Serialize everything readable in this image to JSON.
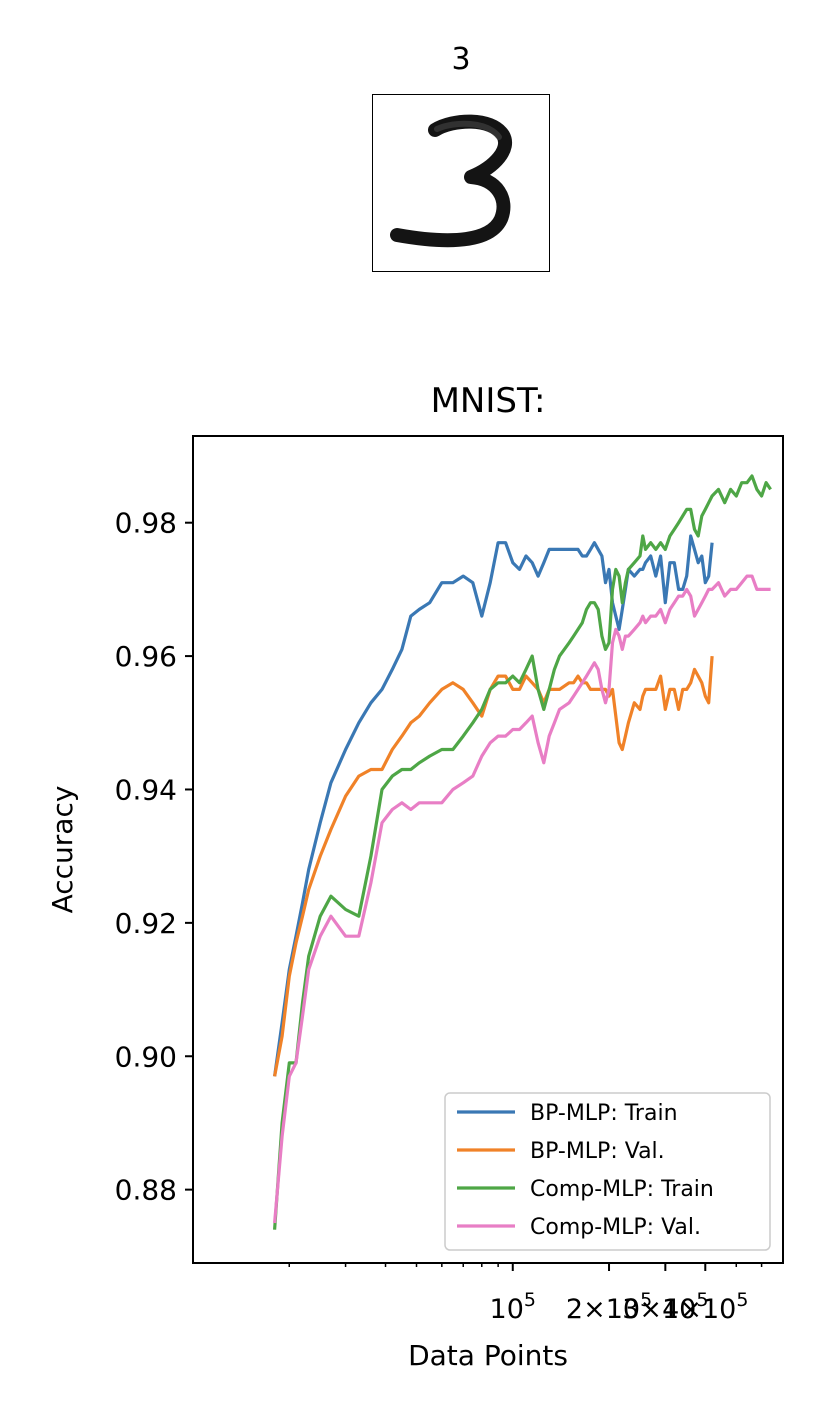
{
  "sample": {
    "label": "3",
    "image": "handwritten-digit-3"
  },
  "colors": {
    "bp_train": "#3a78b4",
    "bp_val": "#f08228",
    "comp_train": "#4ea646",
    "comp_val": "#e87ec5"
  },
  "chart_data": {
    "type": "line",
    "title": "MNIST:",
    "xlabel": "Data Points",
    "ylabel": "Accuracy",
    "xscale": "log",
    "xlim": [
      10000,
      700000
    ],
    "ylim": [
      0.869,
      0.993
    ],
    "yticks": [
      0.88,
      0.9,
      0.92,
      0.94,
      0.96,
      0.98
    ],
    "ytick_labels": [
      "0.88",
      "0.90",
      "0.92",
      "0.94",
      "0.96",
      "0.98"
    ],
    "xticks": [
      100000,
      200000,
      300000,
      400000
    ],
    "xtick_labels": [
      {
        "base": "10",
        "sup": "5"
      },
      {
        "base": "2×10",
        "sup": "5"
      },
      {
        "base": "3×10",
        "sup": "5"
      },
      {
        "base": "4×10",
        "sup": "5"
      }
    ],
    "legend": {
      "location": "lower-right",
      "entries": [
        "BP-MLP: Train",
        "BP-MLP: Val.",
        "Comp-MLP: Train",
        "Comp-MLP: Val."
      ]
    },
    "grid": false,
    "series": [
      {
        "name": "BP-MLP: Train",
        "color_key": "bp_train",
        "x": [
          18000,
          19000,
          20000,
          21000,
          22000,
          23000,
          25000,
          27000,
          30000,
          33000,
          36000,
          39000,
          42000,
          45000,
          48000,
          51000,
          55000,
          60000,
          65000,
          70000,
          75000,
          80000,
          85000,
          90000,
          95000,
          100000,
          105000,
          110000,
          115000,
          120000,
          125000,
          130000,
          135000,
          140000,
          150000,
          155000,
          160000,
          165000,
          170000,
          175000,
          180000,
          185000,
          190000,
          195000,
          200000,
          205000,
          210000,
          215000,
          220000,
          225000,
          230000,
          240000,
          250000,
          255000,
          260000,
          270000,
          280000,
          290000,
          300000,
          310000,
          320000,
          330000,
          340000,
          350000,
          360000,
          370000,
          380000,
          390000,
          400000,
          410000,
          420000
        ],
        "y": [
          0.897,
          0.905,
          0.913,
          0.918,
          0.923,
          0.928,
          0.935,
          0.941,
          0.946,
          0.95,
          0.953,
          0.955,
          0.958,
          0.961,
          0.966,
          0.967,
          0.968,
          0.971,
          0.971,
          0.972,
          0.971,
          0.966,
          0.971,
          0.977,
          0.977,
          0.974,
          0.973,
          0.975,
          0.974,
          0.972,
          0.974,
          0.976,
          0.976,
          0.976,
          0.976,
          0.976,
          0.976,
          0.975,
          0.975,
          0.976,
          0.977,
          0.976,
          0.975,
          0.971,
          0.973,
          0.968,
          0.966,
          0.964,
          0.967,
          0.97,
          0.973,
          0.972,
          0.973,
          0.973,
          0.974,
          0.975,
          0.972,
          0.975,
          0.968,
          0.974,
          0.974,
          0.97,
          0.97,
          0.972,
          0.978,
          0.976,
          0.974,
          0.975,
          0.971,
          0.972,
          0.977
        ]
      },
      {
        "name": "BP-MLP: Val.",
        "color_key": "bp_val",
        "x": [
          18000,
          19000,
          20000,
          21000,
          22000,
          23000,
          25000,
          27000,
          30000,
          33000,
          36000,
          39000,
          42000,
          45000,
          48000,
          51000,
          55000,
          60000,
          65000,
          70000,
          75000,
          80000,
          85000,
          90000,
          95000,
          100000,
          105000,
          110000,
          115000,
          120000,
          125000,
          130000,
          135000,
          140000,
          150000,
          155000,
          160000,
          165000,
          170000,
          175000,
          180000,
          185000,
          190000,
          195000,
          200000,
          205000,
          210000,
          215000,
          220000,
          225000,
          230000,
          240000,
          250000,
          255000,
          260000,
          270000,
          280000,
          290000,
          300000,
          310000,
          320000,
          330000,
          340000,
          350000,
          360000,
          370000,
          380000,
          390000,
          400000,
          410000,
          420000
        ],
        "y": [
          0.897,
          0.903,
          0.912,
          0.917,
          0.921,
          0.925,
          0.93,
          0.934,
          0.939,
          0.942,
          0.943,
          0.943,
          0.946,
          0.948,
          0.95,
          0.951,
          0.953,
          0.955,
          0.956,
          0.955,
          0.953,
          0.951,
          0.955,
          0.957,
          0.957,
          0.955,
          0.955,
          0.957,
          0.956,
          0.955,
          0.953,
          0.955,
          0.955,
          0.955,
          0.956,
          0.956,
          0.957,
          0.956,
          0.956,
          0.955,
          0.955,
          0.955,
          0.955,
          0.955,
          0.954,
          0.955,
          0.951,
          0.947,
          0.946,
          0.948,
          0.95,
          0.953,
          0.952,
          0.954,
          0.955,
          0.955,
          0.955,
          0.957,
          0.952,
          0.955,
          0.955,
          0.952,
          0.955,
          0.955,
          0.956,
          0.958,
          0.957,
          0.956,
          0.954,
          0.953,
          0.96
        ]
      },
      {
        "name": "Comp-MLP: Train",
        "color_key": "comp_train",
        "x": [
          18000,
          19000,
          20000,
          21000,
          22000,
          23000,
          25000,
          27000,
          30000,
          33000,
          36000,
          39000,
          42000,
          45000,
          48000,
          51000,
          55000,
          60000,
          65000,
          70000,
          75000,
          80000,
          85000,
          90000,
          95000,
          100000,
          105000,
          110000,
          115000,
          120000,
          125000,
          130000,
          135000,
          140000,
          150000,
          155000,
          160000,
          165000,
          170000,
          175000,
          180000,
          185000,
          190000,
          195000,
          200000,
          205000,
          210000,
          215000,
          220000,
          225000,
          230000,
          240000,
          250000,
          255000,
          260000,
          270000,
          280000,
          290000,
          300000,
          310000,
          320000,
          330000,
          340000,
          350000,
          360000,
          370000,
          380000,
          390000,
          400000,
          410000,
          420000,
          440000,
          460000,
          480000,
          500000,
          520000,
          540000,
          560000,
          580000,
          600000,
          620000,
          640000
        ],
        "y": [
          0.874,
          0.89,
          0.899,
          0.899,
          0.908,
          0.915,
          0.921,
          0.924,
          0.922,
          0.921,
          0.93,
          0.94,
          0.942,
          0.943,
          0.943,
          0.944,
          0.945,
          0.946,
          0.946,
          0.948,
          0.95,
          0.952,
          0.955,
          0.956,
          0.956,
          0.957,
          0.956,
          0.958,
          0.96,
          0.955,
          0.952,
          0.955,
          0.958,
          0.96,
          0.962,
          0.963,
          0.964,
          0.965,
          0.967,
          0.968,
          0.968,
          0.967,
          0.963,
          0.961,
          0.962,
          0.97,
          0.973,
          0.972,
          0.968,
          0.971,
          0.973,
          0.974,
          0.975,
          0.978,
          0.976,
          0.977,
          0.976,
          0.977,
          0.976,
          0.978,
          0.979,
          0.98,
          0.981,
          0.982,
          0.982,
          0.979,
          0.978,
          0.981,
          0.982,
          0.983,
          0.984,
          0.985,
          0.983,
          0.985,
          0.984,
          0.986,
          0.986,
          0.987,
          0.985,
          0.984,
          0.986,
          0.985
        ]
      },
      {
        "name": "Comp-MLP: Val.",
        "color_key": "comp_val",
        "x": [
          18000,
          19000,
          20000,
          21000,
          22000,
          23000,
          25000,
          27000,
          30000,
          33000,
          36000,
          39000,
          42000,
          45000,
          48000,
          51000,
          55000,
          60000,
          65000,
          70000,
          75000,
          80000,
          85000,
          90000,
          95000,
          100000,
          105000,
          110000,
          115000,
          120000,
          125000,
          130000,
          135000,
          140000,
          150000,
          155000,
          160000,
          165000,
          170000,
          175000,
          180000,
          185000,
          190000,
          195000,
          200000,
          205000,
          210000,
          215000,
          220000,
          225000,
          230000,
          240000,
          250000,
          255000,
          260000,
          270000,
          280000,
          290000,
          300000,
          310000,
          320000,
          330000,
          340000,
          350000,
          360000,
          370000,
          380000,
          390000,
          400000,
          410000,
          420000,
          440000,
          460000,
          480000,
          500000,
          520000,
          540000,
          560000,
          580000,
          600000,
          620000,
          640000
        ],
        "y": [
          0.875,
          0.888,
          0.897,
          0.899,
          0.906,
          0.913,
          0.918,
          0.921,
          0.918,
          0.918,
          0.926,
          0.935,
          0.937,
          0.938,
          0.937,
          0.938,
          0.938,
          0.938,
          0.94,
          0.941,
          0.942,
          0.945,
          0.947,
          0.948,
          0.948,
          0.949,
          0.949,
          0.95,
          0.951,
          0.947,
          0.944,
          0.948,
          0.95,
          0.952,
          0.953,
          0.954,
          0.955,
          0.956,
          0.957,
          0.958,
          0.959,
          0.958,
          0.955,
          0.953,
          0.955,
          0.962,
          0.964,
          0.963,
          0.961,
          0.963,
          0.963,
          0.964,
          0.965,
          0.966,
          0.965,
          0.966,
          0.966,
          0.967,
          0.965,
          0.967,
          0.968,
          0.969,
          0.969,
          0.97,
          0.969,
          0.966,
          0.967,
          0.968,
          0.969,
          0.97,
          0.97,
          0.971,
          0.969,
          0.97,
          0.97,
          0.971,
          0.972,
          0.972,
          0.97,
          0.97,
          0.97,
          0.97
        ]
      }
    ]
  }
}
